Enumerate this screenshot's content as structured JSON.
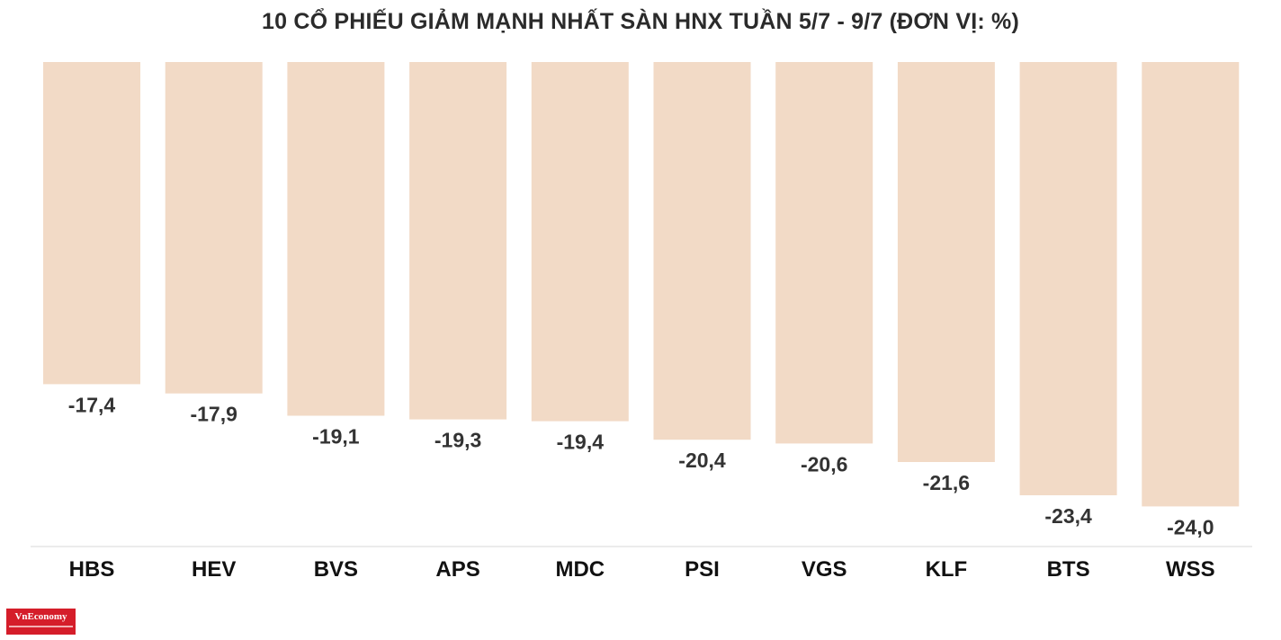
{
  "chart_data": {
    "type": "bar",
    "title": "10 CỔ PHIẾU GIẢM MẠNH NHẤT SÀN HNX TUẦN 5/7 - 9/7 (ĐƠN VỊ: %)",
    "categories": [
      "HBS",
      "HEV",
      "BVS",
      "APS",
      "MDC",
      "PSI",
      "VGS",
      "KLF",
      "BTS",
      "WSS"
    ],
    "values": [
      -17.4,
      -17.9,
      -19.1,
      -19.3,
      -19.4,
      -20.4,
      -20.6,
      -21.6,
      -23.4,
      -24.0
    ],
    "value_labels": [
      "-17,4",
      "-17,9",
      "-19,1",
      "-19,3",
      "-19,4",
      "-20,4",
      "-20,6",
      "-21,6",
      "-23,4",
      "-24,0"
    ],
    "xlabel": "",
    "ylabel": "",
    "ylim": [
      -24.0,
      0
    ],
    "bar_color": "#f2dac6",
    "axis_color": "#e5e5e5",
    "grid": false,
    "legend": "none"
  },
  "logo": {
    "text": "VnEconomy"
  }
}
